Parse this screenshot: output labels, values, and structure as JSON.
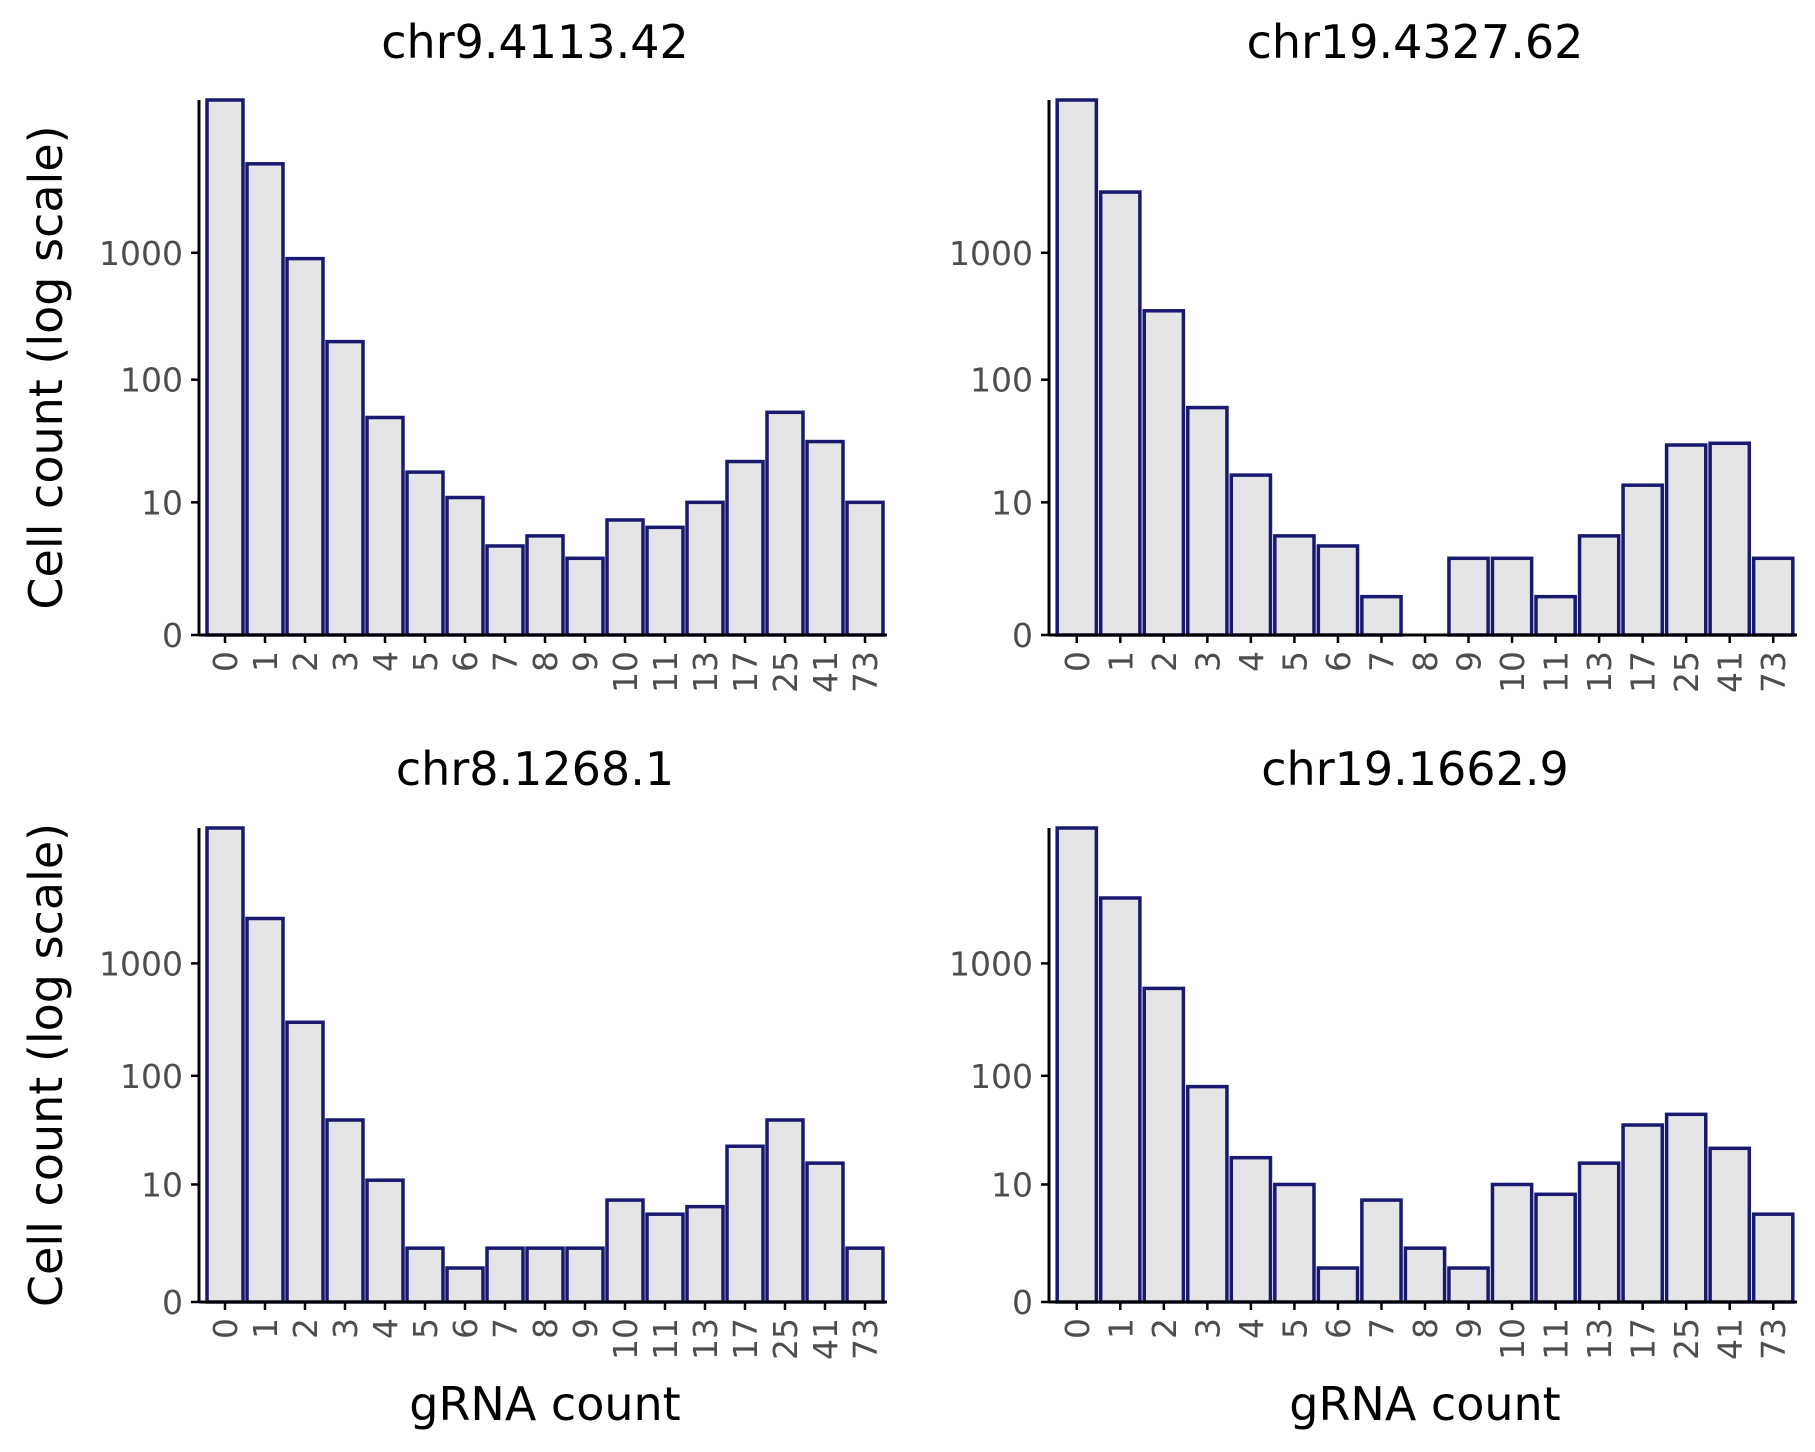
{
  "colors": {
    "bar_fill": "#e5e5e5",
    "bar_stroke": "#191970",
    "axis": "#000000",
    "tick_text": "#4d4d4d"
  },
  "chart_data": [
    {
      "type": "bar",
      "title": "chr9.4113.42",
      "xlabel": "",
      "ylabel": "Cell count (log scale)",
      "y_scale": "log10(y+1)",
      "yticks": [
        0,
        10,
        100,
        1000
      ],
      "ytick_labels": [
        "0",
        "10",
        "100",
        "1000"
      ],
      "categories": [
        "0",
        "1",
        "2",
        "3",
        "4",
        "5",
        "6",
        "7",
        "8",
        "9",
        "10",
        "11",
        "13",
        "17",
        "25",
        "41",
        "73"
      ],
      "values": [
        30000,
        5000,
        900,
        200,
        50,
        18,
        11,
        4,
        5,
        3,
        7,
        6,
        10,
        22,
        55,
        32,
        10
      ]
    },
    {
      "type": "bar",
      "title": "chr19.4327.62",
      "xlabel": "",
      "ylabel": "",
      "y_scale": "log10(y+1)",
      "yticks": [
        0,
        10,
        100,
        1000
      ],
      "ytick_labels": [
        "0",
        "10",
        "100",
        "1000"
      ],
      "categories": [
        "0",
        "1",
        "2",
        "3",
        "4",
        "5",
        "6",
        "7",
        "8",
        "9",
        "10",
        "11",
        "13",
        "17",
        "25",
        "41",
        "73"
      ],
      "values": [
        30000,
        3000,
        350,
        60,
        17,
        5,
        4,
        1,
        0,
        3,
        3,
        1,
        5,
        14,
        30,
        31,
        3
      ]
    },
    {
      "type": "bar",
      "title": "chr8.1268.1",
      "xlabel": "gRNA count",
      "ylabel": "Cell count (log scale)",
      "y_scale": "log10(y+1)",
      "yticks": [
        0,
        10,
        100,
        1000
      ],
      "ytick_labels": [
        "0",
        "10",
        "100",
        "1000"
      ],
      "categories": [
        "0",
        "1",
        "2",
        "3",
        "4",
        "5",
        "6",
        "7",
        "8",
        "9",
        "10",
        "11",
        "13",
        "17",
        "25",
        "41",
        "73"
      ],
      "values": [
        30000,
        2500,
        300,
        40,
        11,
        2,
        1,
        2,
        2,
        2,
        7,
        5,
        6,
        23,
        40,
        16,
        2
      ]
    },
    {
      "type": "bar",
      "title": "chr19.1662.9",
      "xlabel": "gRNA count",
      "ylabel": "",
      "y_scale": "log10(y+1)",
      "yticks": [
        0,
        10,
        100,
        1000
      ],
      "ytick_labels": [
        "0",
        "10",
        "100",
        "1000"
      ],
      "categories": [
        "0",
        "1",
        "2",
        "3",
        "4",
        "5",
        "6",
        "7",
        "8",
        "9",
        "10",
        "11",
        "13",
        "17",
        "25",
        "41",
        "73"
      ],
      "values": [
        30000,
        3800,
        600,
        80,
        18,
        10,
        1,
        7,
        2,
        1,
        10,
        8,
        16,
        36,
        45,
        22,
        5
      ]
    }
  ]
}
